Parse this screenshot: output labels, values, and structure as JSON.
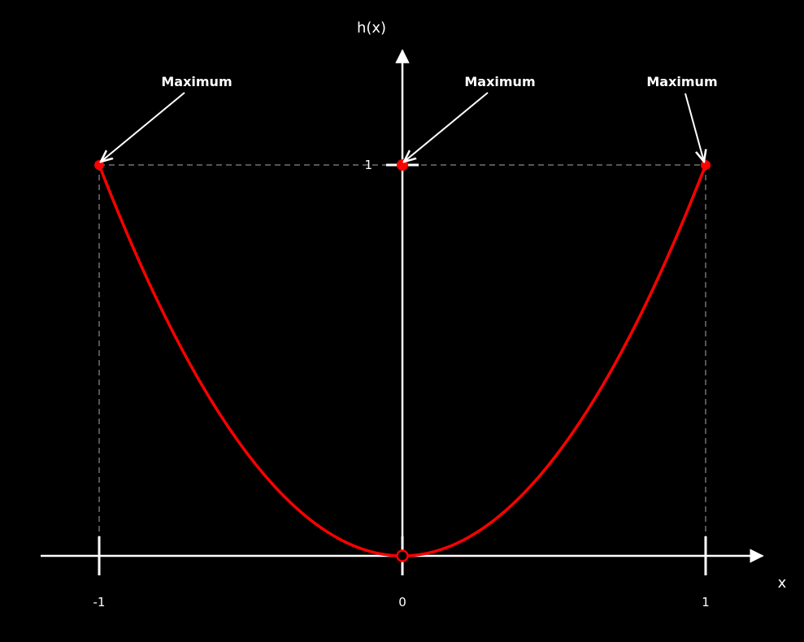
{
  "chart_data": {
    "type": "line",
    "function_label": "h(x)",
    "xlabel": "x",
    "ylabel": "h(x)",
    "xlim": [
      -1.2,
      1.2
    ],
    "ylim": [
      -0.05,
      1.2
    ],
    "grid": false,
    "series": [
      {
        "x": [
          -1,
          -0.9,
          -0.8,
          -0.7,
          -0.6,
          -0.5,
          -0.4,
          -0.3,
          -0.2,
          -0.1,
          0,
          0.1,
          0.2,
          0.3,
          0.4,
          0.5,
          0.6,
          0.7,
          0.8,
          0.9,
          1
        ],
        "values": [
          1,
          0.81,
          0.64,
          0.49,
          0.36,
          0.25,
          0.16,
          0.09,
          0.04,
          0.01,
          0,
          0.01,
          0.04,
          0.09,
          0.16,
          0.25,
          0.36,
          0.49,
          0.64,
          0.81,
          1
        ]
      }
    ],
    "x_ticks": [
      {
        "value": -1,
        "label": "-1"
      },
      {
        "value": 0,
        "label": "0"
      },
      {
        "value": 1,
        "label": "1"
      }
    ],
    "y_ticks": [
      {
        "value": 1,
        "label": "1"
      }
    ],
    "points": [
      {
        "x": -1,
        "y": 1,
        "style": "filled"
      },
      {
        "x": 0,
        "y": 1,
        "style": "filled"
      },
      {
        "x": 1,
        "y": 1,
        "style": "filled"
      },
      {
        "x": 0,
        "y": 0,
        "style": "open"
      }
    ],
    "annotations": [
      {
        "text": "Maximum",
        "x": -1,
        "y": 1
      },
      {
        "text": "Maximum",
        "x": 0,
        "y": 1
      },
      {
        "text": "Maximum",
        "x": 1,
        "y": 1
      }
    ],
    "colors": {
      "background": "#000000",
      "axis": "#ffffff",
      "curve": "#ff0000",
      "guide": "#555555"
    }
  }
}
